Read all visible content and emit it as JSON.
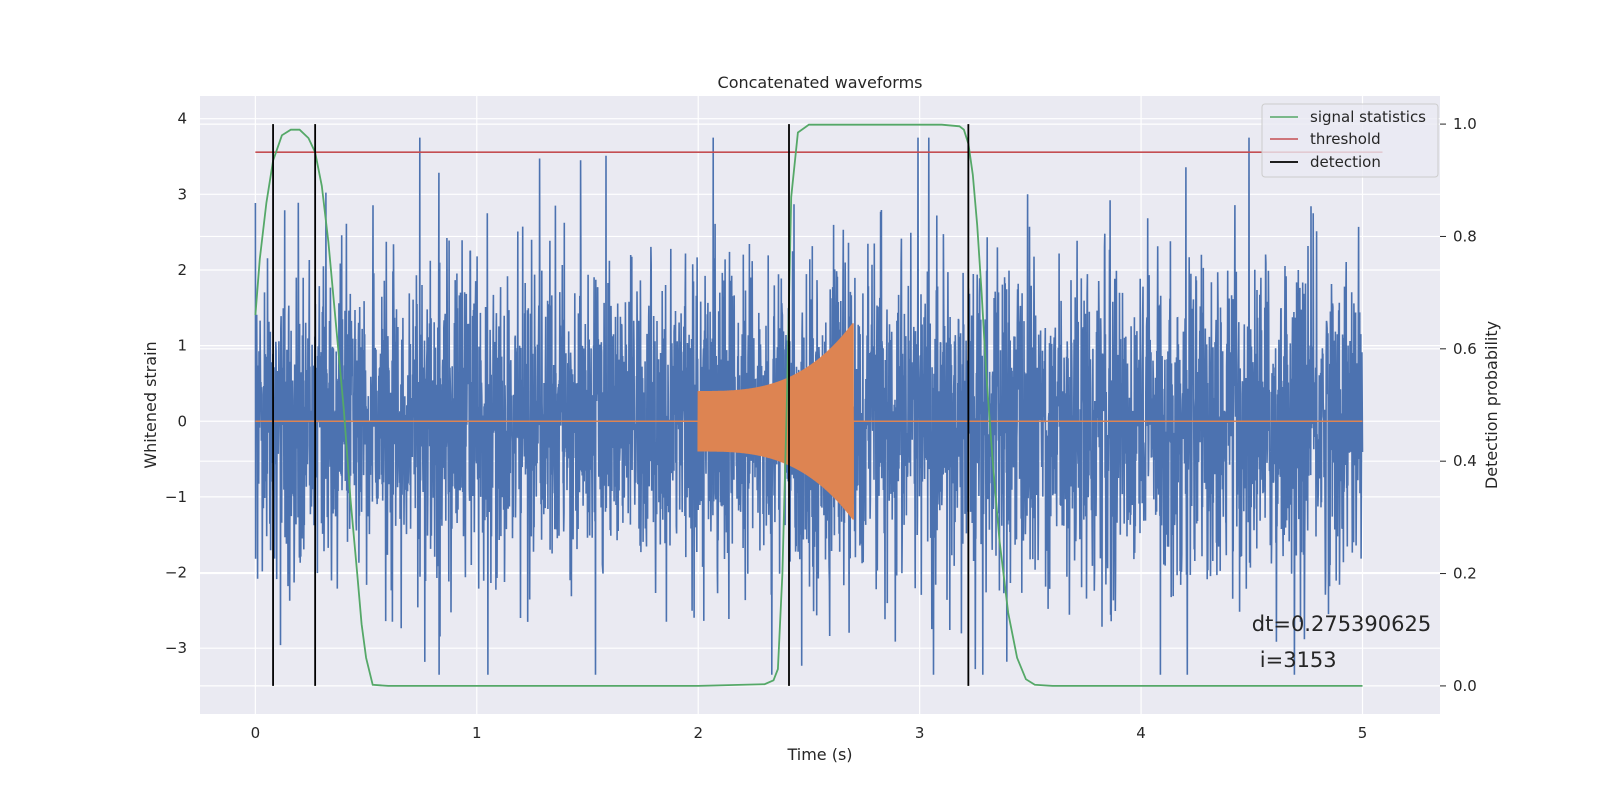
{
  "chart_data": {
    "type": "line",
    "title": "Concatenated waveforms",
    "xlabel": "Time (s)",
    "ylabel": "Whitened strain",
    "y2label": "Detection probability",
    "xlim": [
      -0.25,
      5.35
    ],
    "ylim": [
      -3.87,
      4.3
    ],
    "y2lim": [
      -0.05,
      1.05
    ],
    "xticks": [
      0,
      1,
      2,
      3,
      4,
      5
    ],
    "yticks": [
      -3,
      -2,
      -1,
      0,
      1,
      2,
      3,
      4
    ],
    "y2ticks": [
      0.0,
      0.2,
      0.4,
      0.6,
      0.8,
      1.0
    ],
    "xtick_labels": [
      "0",
      "1",
      "2",
      "3",
      "4",
      "5"
    ],
    "ytick_labels": [
      "−3",
      "−2",
      "−1",
      "0",
      "1",
      "2",
      "3",
      "4"
    ],
    "y2tick_labels": [
      "0.0",
      "0.2",
      "0.4",
      "0.6",
      "0.8",
      "1.0"
    ],
    "grid": true,
    "legend_position": "top-right",
    "legend": [
      "signal statistics",
      "threshold",
      "detection"
    ],
    "colors": {
      "strain": "#4c72b0",
      "injection": "#dd8452",
      "statistics": "#55a868",
      "threshold": "#c44e52",
      "detection": "#000000",
      "axes_bg": "#eaeaf2",
      "grid": "#ffffff"
    },
    "strain_series": {
      "x_range": [
        0,
        5
      ],
      "y_envelope": [
        -3.35,
        3.75
      ],
      "typical_amplitude": 1.0
    },
    "injection_series": {
      "x_range": [
        2.0,
        2.7
      ],
      "start_amplitude": 0.4,
      "peak_amplitude": 1.3,
      "peak_time": 2.7
    },
    "series": [
      {
        "name": "signal statistics",
        "axis": "right",
        "x": [
          0.0,
          0.02,
          0.05,
          0.08,
          0.12,
          0.16,
          0.2,
          0.24,
          0.27,
          0.3,
          0.33,
          0.36,
          0.4,
          0.43,
          0.46,
          0.48,
          0.5,
          0.53,
          0.6,
          1.0,
          2.0,
          2.3,
          2.34,
          2.36,
          2.38,
          2.4,
          2.42,
          2.45,
          2.5,
          3.0,
          3.1,
          3.18,
          3.2,
          3.22,
          3.24,
          3.26,
          3.28,
          3.3,
          3.33,
          3.36,
          3.4,
          3.44,
          3.48,
          3.52,
          3.6,
          4.0,
          5.0
        ],
        "y": [
          0.66,
          0.76,
          0.86,
          0.935,
          0.98,
          0.99,
          0.99,
          0.975,
          0.95,
          0.89,
          0.79,
          0.66,
          0.49,
          0.33,
          0.2,
          0.11,
          0.05,
          0.002,
          0.0,
          0.0,
          0.0,
          0.003,
          0.01,
          0.03,
          0.2,
          0.5,
          0.87,
          0.985,
          0.999,
          0.999,
          0.999,
          0.996,
          0.99,
          0.965,
          0.91,
          0.82,
          0.7,
          0.56,
          0.4,
          0.26,
          0.13,
          0.05,
          0.012,
          0.002,
          0.0,
          0.0,
          0.0
        ]
      },
      {
        "name": "threshold",
        "axis": "right",
        "x": [
          0.0,
          5.0
        ],
        "y": [
          0.95,
          0.95
        ]
      }
    ],
    "detections": [
      0.08,
      0.27,
      2.41,
      3.22
    ],
    "detection_range": [
      0.0,
      1.0
    ],
    "annotation": {
      "line1": "dt=0.275390625",
      "line2": "i=3153",
      "x": 4.5,
      "y1": 0.11,
      "y2": 0.06
    }
  }
}
